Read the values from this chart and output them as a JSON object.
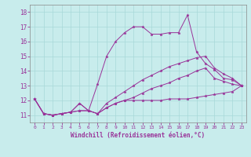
{
  "bg_color": "#c8ecec",
  "line_color": "#993399",
  "xlim": [
    -0.5,
    23.5
  ],
  "ylim": [
    10.5,
    18.5
  ],
  "xticks": [
    0,
    1,
    2,
    3,
    4,
    5,
    6,
    7,
    8,
    9,
    10,
    11,
    12,
    13,
    14,
    15,
    16,
    17,
    18,
    19,
    20,
    21,
    22,
    23
  ],
  "yticks": [
    11,
    12,
    13,
    14,
    15,
    16,
    17,
    18
  ],
  "xlabel": "Windchill (Refroidissement éolien,°C)",
  "series": [
    [
      12.1,
      11.1,
      11.0,
      11.1,
      11.2,
      11.8,
      11.3,
      11.1,
      11.5,
      11.8,
      12.0,
      12.0,
      12.0,
      12.0,
      12.0,
      12.1,
      12.1,
      12.1,
      12.2,
      12.3,
      12.4,
      12.5,
      12.6,
      13.0
    ],
    [
      12.1,
      11.1,
      11.0,
      11.1,
      11.2,
      11.8,
      11.3,
      13.1,
      15.0,
      16.0,
      16.6,
      17.0,
      17.0,
      16.5,
      16.5,
      16.6,
      16.6,
      17.8,
      15.3,
      14.5,
      14.1,
      13.5,
      13.4,
      13.0
    ],
    [
      12.1,
      11.1,
      11.0,
      11.1,
      11.2,
      11.3,
      11.3,
      11.1,
      11.8,
      12.2,
      12.6,
      13.0,
      13.4,
      13.7,
      14.0,
      14.3,
      14.5,
      14.7,
      14.9,
      15.0,
      14.2,
      13.8,
      13.5,
      13.0
    ],
    [
      12.1,
      11.1,
      11.0,
      11.1,
      11.2,
      11.3,
      11.3,
      11.1,
      11.5,
      11.8,
      12.0,
      12.2,
      12.5,
      12.8,
      13.0,
      13.2,
      13.5,
      13.7,
      14.0,
      14.2,
      13.5,
      13.3,
      13.1,
      13.0
    ]
  ]
}
